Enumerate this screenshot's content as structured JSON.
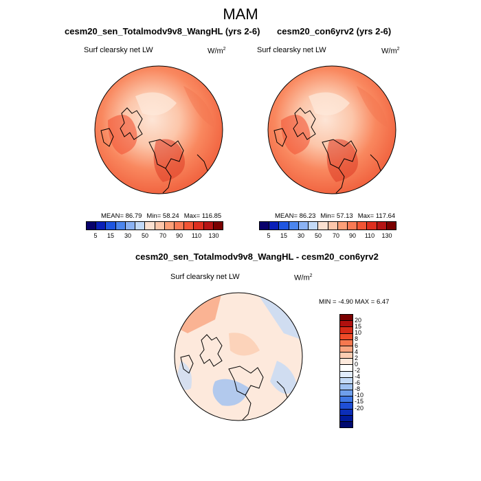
{
  "figure": {
    "title": "MAM",
    "left_title": "cesm20_sen_Totalmodv9v8_WangHL (yrs 2-6)",
    "right_title": "cesm20_con6yrv2 (yrs 2-6)",
    "diff_title": "cesm20_sen_Totalmodv9v8_WangHL - cesm20_con6yrv2"
  },
  "colors": {
    "seq": [
      "#08006b",
      "#0a1fb8",
      "#1f56e0",
      "#4c86ee",
      "#8bb2f3",
      "#c2d9f7",
      "#fbe0d0",
      "#fcc6aa",
      "#fc9f78",
      "#f97a55",
      "#f25535",
      "#dd2f1f",
      "#b51414",
      "#7a0000"
    ],
    "div": [
      "#7a0000",
      "#b0100e",
      "#d72b18",
      "#ef4b28",
      "#f6784f",
      "#f9a581",
      "#fbcdb2",
      "#fde9dc",
      "#ffffff",
      "#e1ecfb",
      "#c4daf6",
      "#9fc1f1",
      "#6f9feb",
      "#3f77e4",
      "#1f4fd6",
      "#0c2eb8",
      "#001a9a",
      "#000a70"
    ],
    "land_outline": "#000000"
  },
  "chart_data": [
    {
      "type": "heatmap",
      "title": "cesm20_sen_Totalmodv9v8_WangHL (yrs 2-6)",
      "variable": "Surf clearsky net LW",
      "units_base": "W/m",
      "units_exp": "2",
      "projection": "north-polar-stereographic",
      "stats": {
        "mean_label": "MEAN=",
        "mean": "86.79",
        "min_label": "Min=",
        "min": "58.24",
        "max_label": "Max=",
        "max": "116.85"
      },
      "colorbar": {
        "orientation": "horizontal",
        "tick_labels": [
          "5",
          "15",
          "30",
          "50",
          "70",
          "90",
          "110",
          "130"
        ]
      }
    },
    {
      "type": "heatmap",
      "title": "cesm20_con6yrv2 (yrs 2-6)",
      "variable": "Surf clearsky net LW",
      "units_base": "W/m",
      "units_exp": "2",
      "projection": "north-polar-stereographic",
      "stats": {
        "mean_label": "MEAN=",
        "mean": "86.23",
        "min_label": "Min=",
        "min": "57.13",
        "max_label": "Max=",
        "max": "117.64"
      },
      "colorbar": {
        "orientation": "horizontal",
        "tick_labels": [
          "5",
          "15",
          "30",
          "50",
          "70",
          "90",
          "110",
          "130"
        ]
      }
    },
    {
      "type": "heatmap",
      "title": "cesm20_sen_Totalmodv9v8_WangHL - cesm20_con6yrv2",
      "variable": "Surf clearsky net LW",
      "units_base": "W/m",
      "units_exp": "2",
      "projection": "north-polar-stereographic",
      "stats": {
        "min_label": "MIN =",
        "min": "-4.90",
        "max_label": "MAX =",
        "max": "6.47"
      },
      "colorbar": {
        "orientation": "vertical",
        "tick_labels": [
          "20",
          "15",
          "10",
          "8",
          "6",
          "4",
          "2",
          "0",
          "-2",
          "-4",
          "-6",
          "-8",
          "-10",
          "-15",
          "-20"
        ]
      }
    }
  ]
}
